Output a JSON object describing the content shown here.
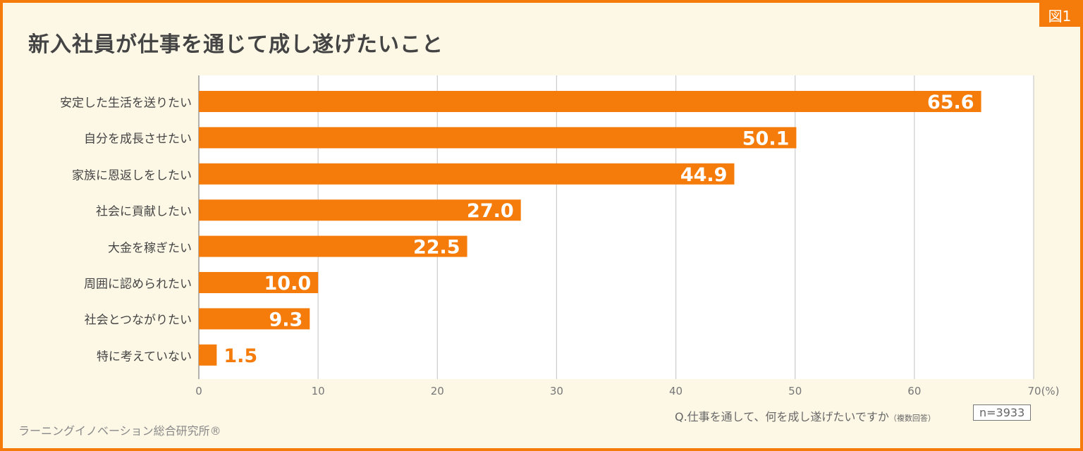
{
  "badge": "図1",
  "title": "新入社員が仕事を通じて成し遂げたいこと",
  "chart_data": {
    "type": "bar",
    "orientation": "horizontal",
    "title": "新入社員が仕事を通じて成し遂げたいこと",
    "categories": [
      "安定した生活を送りたい",
      "自分を成長させたい",
      "家族に恩返しをしたい",
      "社会に貢献したい",
      "大金を稼ぎたい",
      "周囲に認められたい",
      "社会とつながりたい",
      "特に考えていない"
    ],
    "values": [
      65.6,
      50.1,
      44.9,
      27.0,
      22.5,
      10.0,
      9.3,
      1.5
    ],
    "value_labels": [
      "65.6",
      "50.1",
      "44.9",
      "27.0",
      "22.5",
      "10.0",
      "9.3",
      "1.5"
    ],
    "xlim": [
      0,
      70
    ],
    "xticks": [
      "0",
      "10",
      "20",
      "30",
      "40",
      "50",
      "60",
      "70(%)"
    ],
    "grid": true,
    "bar_color": "#f57c0a"
  },
  "question": "Q.仕事を通して、何を成し遂げたいですか",
  "question_note": "（複数回答）",
  "sample": "n=3933",
  "source": "ラーニングイノベーション総合研究所®"
}
